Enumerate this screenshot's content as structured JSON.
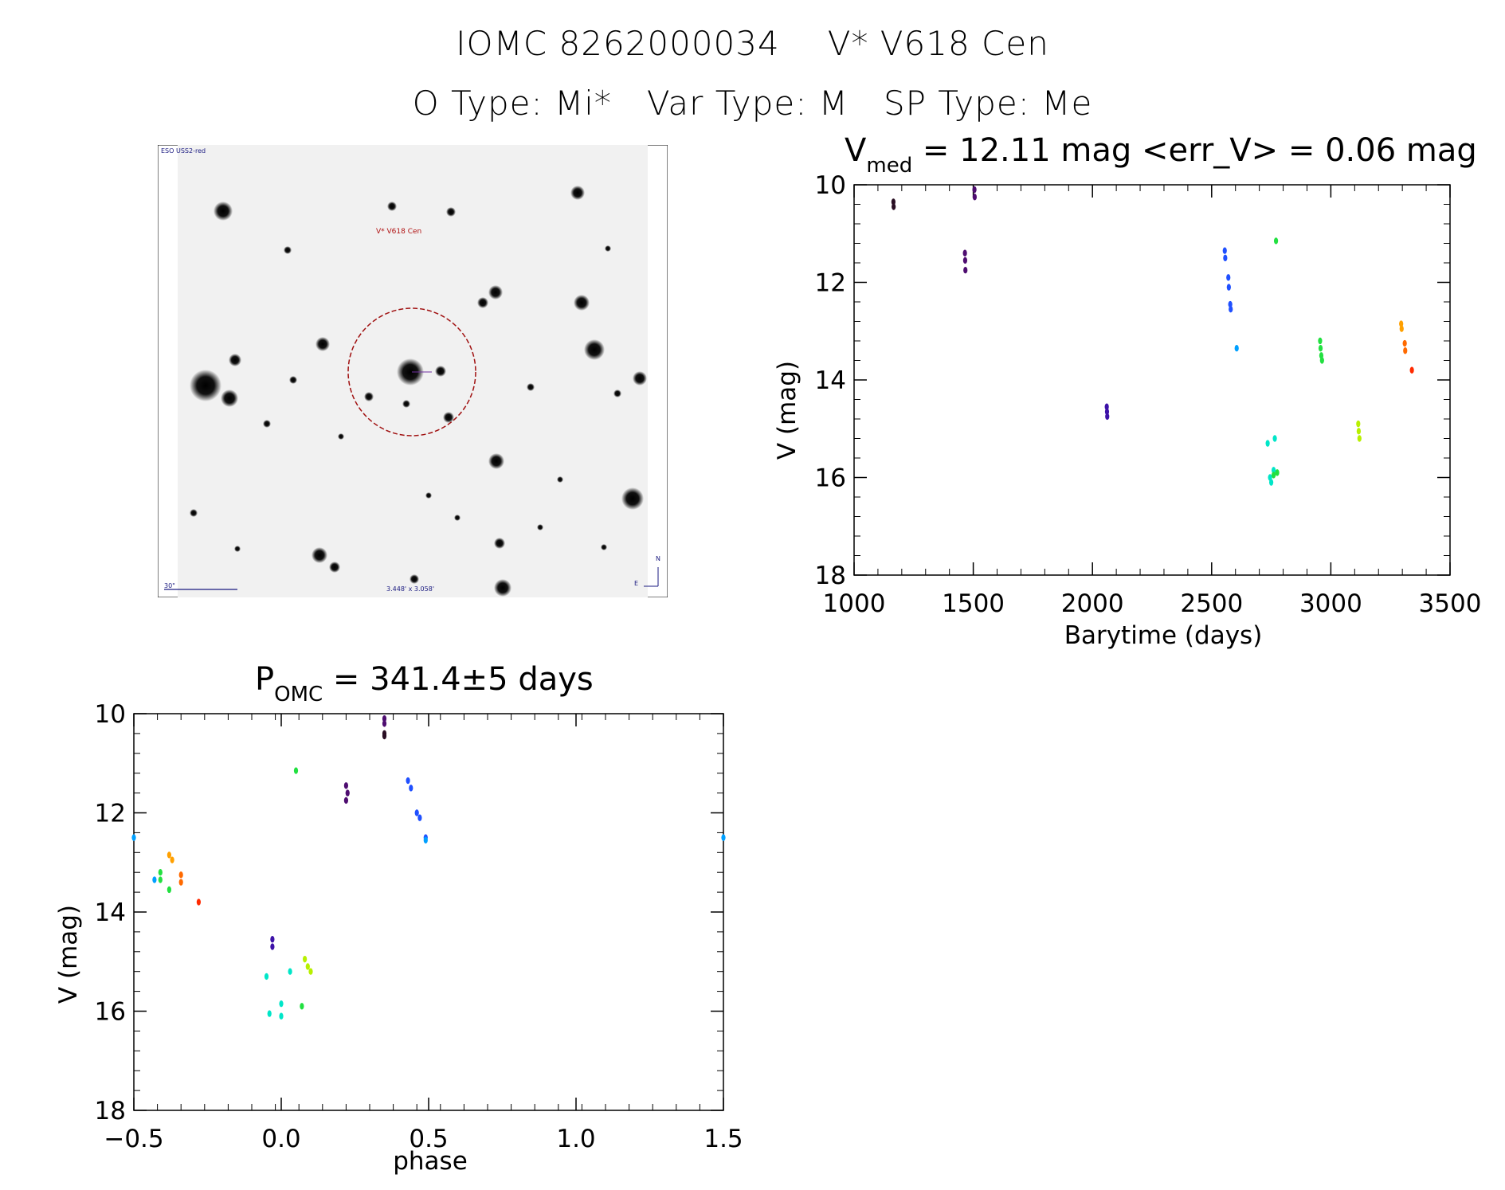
{
  "header": {
    "id_label": "IOMC 8262000034",
    "name_label": "V* V618 Cen",
    "o_type": "O Type: Mi*",
    "var_type": "Var Type: M",
    "sp_type": "SP Type: Me"
  },
  "finder": {
    "survey_label": "ESO USS2-red",
    "target_label": "V* V618 Cen",
    "scale_label": "30\"",
    "fov_label": "3.448' x 3.058'",
    "north_label": "N",
    "east_label": "E"
  },
  "colors": {
    "c0": "#2a0f24",
    "c1": "#4e0d70",
    "c2": "#3d12a8",
    "c3": "#2050ff",
    "c4": "#00a0ff",
    "c5": "#00e6c8",
    "c6": "#22e040",
    "c7": "#b8f000",
    "c8": "#ffa000",
    "c9": "#ff6a00",
    "c10": "#ff2a00"
  },
  "chart_data": [
    {
      "type": "scatter",
      "title_main": "V",
      "title_sub": "med",
      "title_rest": " = 12.11 mag <err_V> = 0.06 mag",
      "xlabel": "Barytime (days)",
      "ylabel": "V (mag)",
      "xlim": [
        1000,
        3500
      ],
      "ylim": [
        18,
        10
      ],
      "xticks": [
        1000,
        1500,
        2000,
        2500,
        3000,
        3500
      ],
      "yticks": [
        10,
        12,
        14,
        16,
        18
      ],
      "groups": [
        {
          "color": "c0",
          "points": [
            [
              1165,
              10.35
            ],
            [
              1166,
              10.45
            ]
          ]
        },
        {
          "color": "c1",
          "points": [
            [
              1465,
              11.4
            ],
            [
              1466,
              11.55
            ],
            [
              1467,
              11.75
            ],
            [
              1505,
              10.1
            ],
            [
              1506,
              10.25
            ]
          ]
        },
        {
          "color": "c2",
          "points": [
            [
              2060,
              14.55
            ],
            [
              2061,
              14.65
            ],
            [
              2062,
              14.75
            ]
          ]
        },
        {
          "color": "c3",
          "points": [
            [
              2555,
              11.35
            ],
            [
              2557,
              11.5
            ],
            [
              2570,
              11.9
            ],
            [
              2572,
              12.1
            ],
            [
              2578,
              12.45
            ],
            [
              2580,
              12.55
            ]
          ]
        },
        {
          "color": "c4",
          "points": [
            [
              2605,
              13.35
            ]
          ]
        },
        {
          "color": "c5",
          "points": [
            [
              2735,
              15.3
            ],
            [
              2745,
              16.0
            ],
            [
              2750,
              16.1
            ],
            [
              2760,
              15.85
            ],
            [
              2765,
              15.2
            ]
          ]
        },
        {
          "color": "c6",
          "points": [
            [
              2760,
              15.95
            ],
            [
              2770,
              11.15
            ],
            [
              2775,
              15.9
            ]
          ]
        },
        {
          "color": "c6",
          "points": [
            [
              2955,
              13.2
            ],
            [
              2957,
              13.35
            ],
            [
              2960,
              13.5
            ],
            [
              2963,
              13.6
            ]
          ]
        },
        {
          "color": "c7",
          "points": [
            [
              3115,
              14.9
            ],
            [
              3117,
              15.05
            ],
            [
              3120,
              15.2
            ]
          ]
        },
        {
          "color": "c8",
          "points": [
            [
              3295,
              12.85
            ],
            [
              3297,
              12.95
            ]
          ]
        },
        {
          "color": "c9",
          "points": [
            [
              3310,
              13.25
            ],
            [
              3312,
              13.4
            ]
          ]
        },
        {
          "color": "c10",
          "points": [
            [
              3340,
              13.8
            ]
          ]
        }
      ]
    },
    {
      "type": "scatter",
      "title_main": "P",
      "title_sub": "OMC",
      "title_rest": " = 341.4±5 days",
      "xlabel": "phase",
      "ylabel": "V (mag)",
      "xlim": [
        -0.5,
        1.5
      ],
      "ylim": [
        18,
        10
      ],
      "xticks": [
        -0.5,
        0.0,
        0.5,
        1.0,
        1.5
      ],
      "xtick_labels": [
        "−0.5",
        "0.0",
        "0.5",
        "1.0",
        "1.5"
      ],
      "yticks": [
        10,
        12,
        14,
        16,
        18
      ],
      "groups": [
        {
          "color": "c0",
          "points": [
            [
              0.35,
              10.4
            ],
            [
              0.35,
              10.45
            ]
          ]
        },
        {
          "color": "c1",
          "points": [
            [
              0.35,
              10.1
            ],
            [
              0.35,
              10.2
            ],
            [
              0.22,
              11.45
            ],
            [
              0.225,
              11.6
            ],
            [
              0.22,
              11.75
            ]
          ]
        },
        {
          "color": "c2",
          "points": [
            [
              -0.03,
              14.55
            ],
            [
              -0.03,
              14.7
            ]
          ]
        },
        {
          "color": "c3",
          "points": [
            [
              0.43,
              11.35
            ],
            [
              0.44,
              11.5
            ],
            [
              0.46,
              12.0
            ],
            [
              0.47,
              12.1
            ],
            [
              0.49,
              12.5
            ]
          ]
        },
        {
          "color": "c4",
          "points": [
            [
              0.49,
              12.55
            ],
            [
              -0.43,
              13.35
            ],
            [
              1.5,
              12.5
            ],
            [
              -0.5,
              12.5
            ]
          ]
        },
        {
          "color": "c5",
          "points": [
            [
              -0.05,
              15.3
            ],
            [
              -0.04,
              16.05
            ],
            [
              0.0,
              15.85
            ],
            [
              0.0,
              16.1
            ],
            [
              0.03,
              15.2
            ]
          ]
        },
        {
          "color": "c6",
          "points": [
            [
              0.05,
              11.15
            ],
            [
              0.07,
              15.9
            ],
            [
              -0.41,
              13.2
            ],
            [
              -0.41,
              13.35
            ],
            [
              -0.38,
              13.55
            ]
          ]
        },
        {
          "color": "c7",
          "points": [
            [
              0.08,
              14.95
            ],
            [
              0.09,
              15.1
            ],
            [
              0.1,
              15.2
            ]
          ]
        },
        {
          "color": "c8",
          "points": [
            [
              -0.38,
              12.85
            ],
            [
              -0.37,
              12.95
            ]
          ]
        },
        {
          "color": "c9",
          "points": [
            [
              -0.34,
              13.25
            ],
            [
              -0.34,
              13.4
            ]
          ]
        },
        {
          "color": "c10",
          "points": [
            [
              -0.28,
              13.8
            ]
          ]
        }
      ]
    }
  ]
}
